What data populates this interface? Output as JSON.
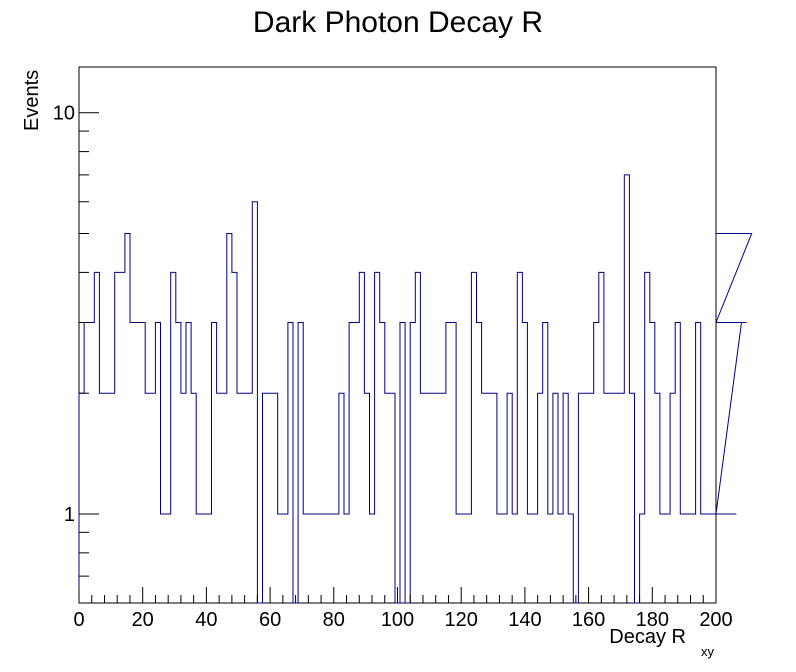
{
  "chart_data": {
    "type": "histogram",
    "title": "Dark Photon Decay R",
    "xlabel_main": "Decay R",
    "xlabel_sub": "xy",
    "ylabel": "Events",
    "xlim": [
      0,
      200
    ],
    "ylim": [
      0.6,
      13
    ],
    "y_scale": "log",
    "grid": false,
    "legend": "none",
    "line_color": "#000080",
    "bin_width": 1.6,
    "x_ticks": [
      "0",
      "20",
      "40",
      "60",
      "80",
      "100",
      "120",
      "140",
      "160",
      "180",
      "200"
    ],
    "y_ticks": [
      "1",
      "10"
    ],
    "values": [
      2,
      3,
      3,
      4,
      2,
      2,
      2,
      4,
      4,
      5,
      3,
      3,
      3,
      2,
      2,
      3,
      1,
      1,
      4,
      3,
      2,
      3,
      2,
      1,
      1,
      1,
      3,
      2,
      2,
      5,
      4,
      2,
      2,
      2,
      6,
      0,
      2,
      2,
      2,
      1,
      1,
      3,
      0,
      3,
      1,
      1,
      1,
      1,
      1,
      1,
      1,
      2,
      1,
      3,
      3,
      4,
      2,
      1,
      4,
      3,
      2,
      2,
      0,
      3,
      0,
      3,
      4,
      2,
      2,
      2,
      2,
      2,
      3,
      3,
      1,
      1,
      1,
      4,
      3,
      2,
      2,
      2,
      1,
      1,
      2,
      1,
      4,
      3,
      1,
      1,
      2,
      3,
      1,
      2,
      1,
      2,
      1,
      0,
      2,
      2,
      2,
      3,
      4,
      2,
      2,
      2,
      2,
      7,
      2,
      0,
      1,
      4,
      3,
      2,
      1,
      1,
      2,
      3,
      1,
      1,
      1,
      3,
      1,
      1,
      1,
      1,
      1,
      1,
      1,
      1,
      3,
      3,
      5
    ]
  }
}
